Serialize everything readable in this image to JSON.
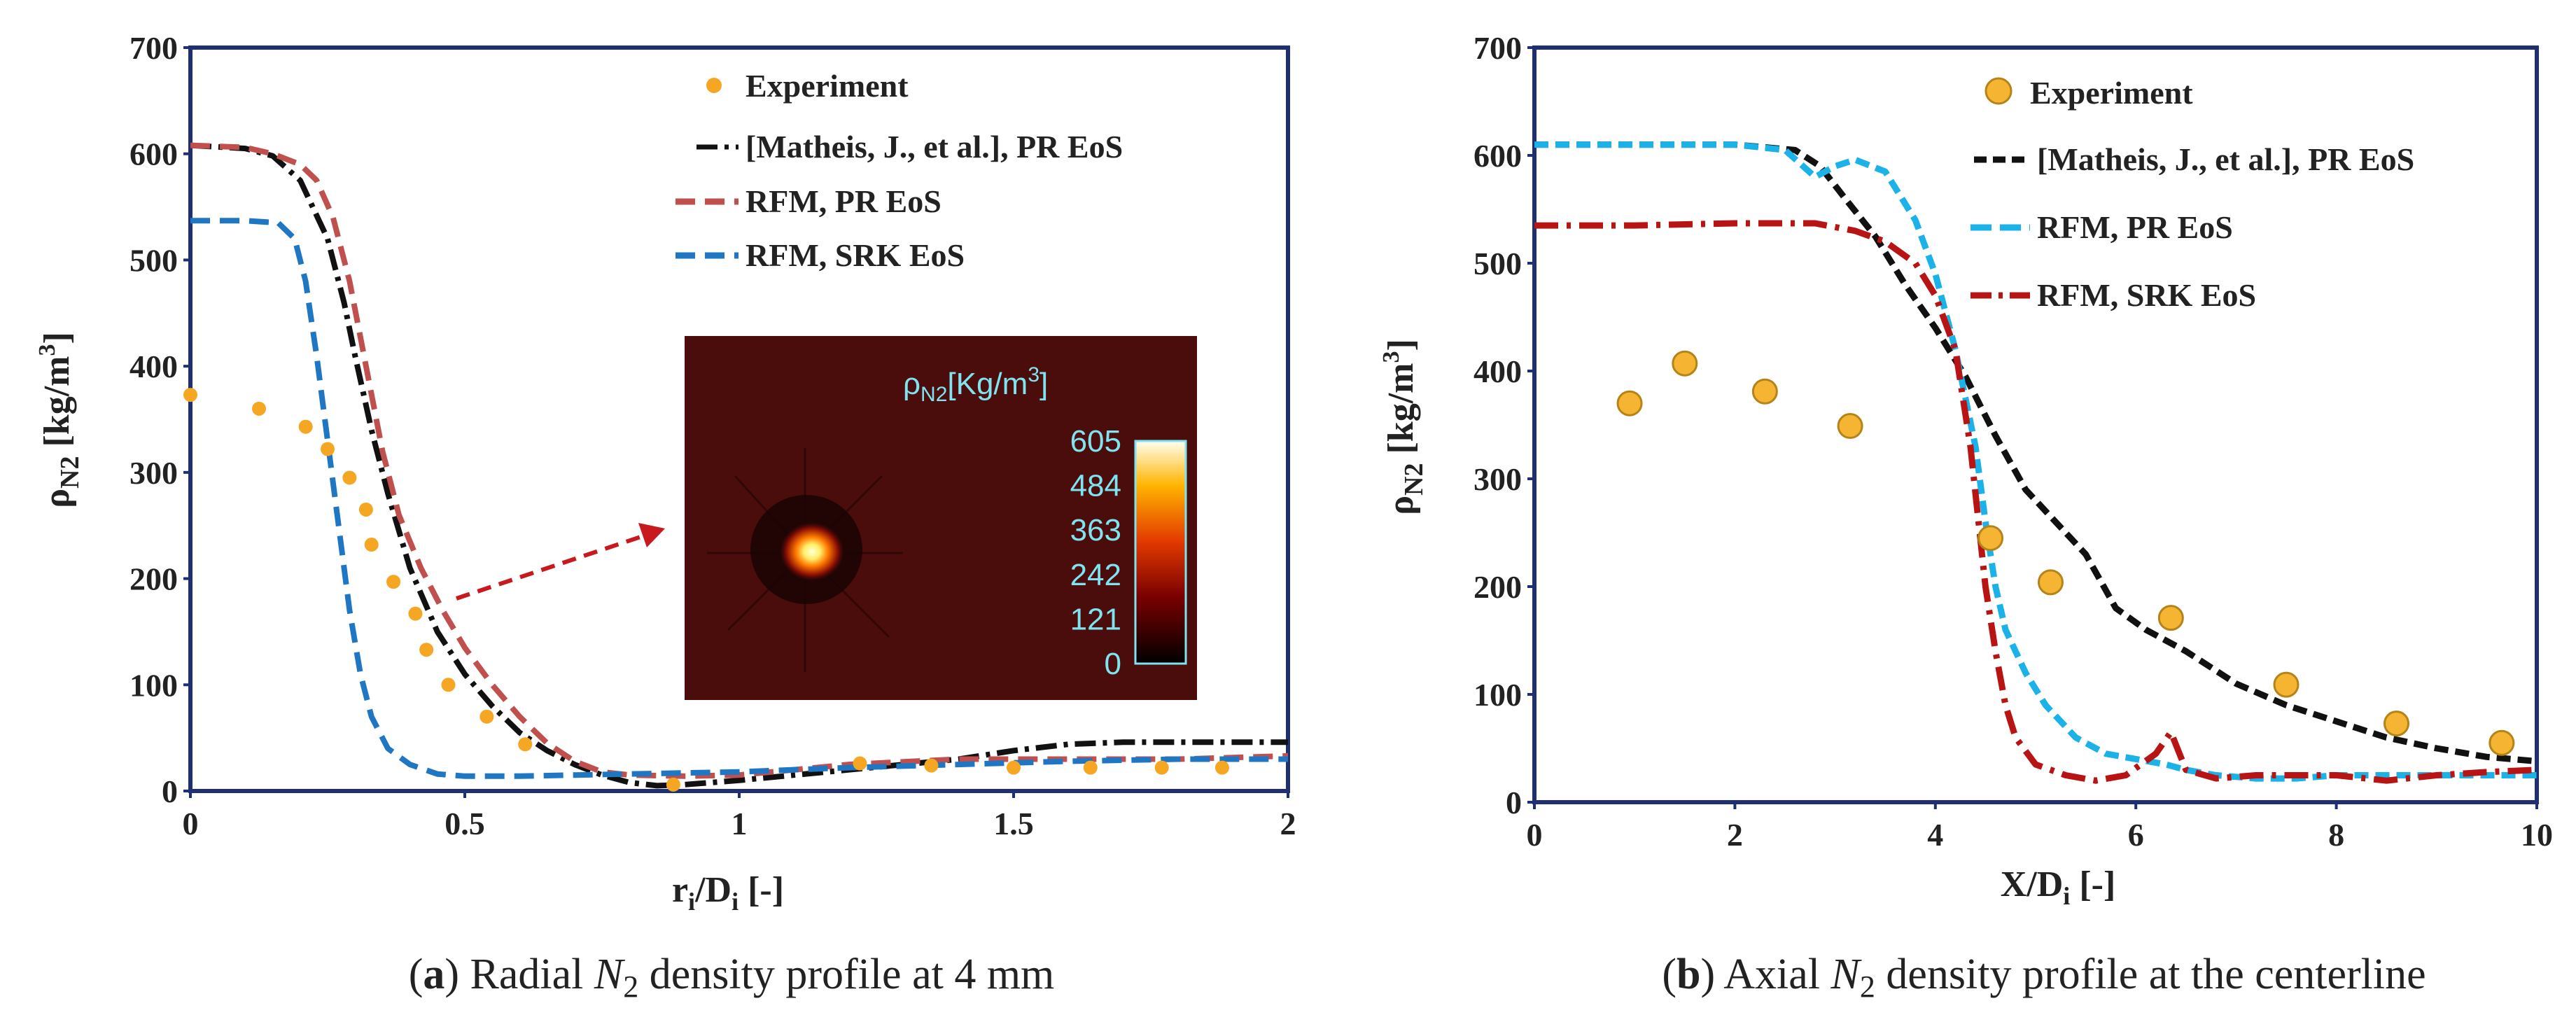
{
  "chart_data": [
    {
      "type": "line",
      "panel": "a",
      "caption_label": "a",
      "caption_text": " Radial ",
      "caption_symbol": "N",
      "caption_sub": "2",
      "caption_rest": " density profile at 4 mm",
      "xlabel_main": "r",
      "xlabel_sub": "i",
      "xlabel_mid": "/D",
      "xlabel_sub2": "i",
      "xlabel_unit": " [-]",
      "ylabel_main": "ρ",
      "ylabel_sub": "N2",
      "ylabel_unit": " [kg/m",
      "ylabel_sup": "3",
      "ylabel_close": "]",
      "xlim": [
        0,
        2
      ],
      "ylim": [
        0,
        700
      ],
      "xticks": [
        "0",
        "0.5",
        "1",
        "1.5",
        "2"
      ],
      "xtick_values": [
        0,
        0.5,
        1,
        1.5,
        2
      ],
      "yticks": [
        "0",
        "100",
        "200",
        "300",
        "400",
        "500",
        "600",
        "700"
      ],
      "ytick_values": [
        0,
        100,
        200,
        300,
        400,
        500,
        600,
        700
      ],
      "legend": [
        "Experiment",
        "[Matheis, J., et al.],  PR EoS",
        "RFM, PR EoS",
        "RFM, SRK EoS"
      ],
      "series": [
        {
          "name": "Experiment",
          "style": "marker",
          "color": "#f5a623",
          "x": [
            0.0,
            0.125,
            0.21,
            0.25,
            0.29,
            0.32,
            0.33,
            0.37,
            0.41,
            0.43,
            0.47,
            0.54,
            0.61,
            0.88,
            1.22,
            1.35,
            1.5,
            1.64,
            1.77,
            1.88
          ],
          "y": [
            373,
            360,
            343,
            322,
            295,
            265,
            232,
            197,
            167,
            133,
            100,
            70,
            44,
            6,
            26,
            24,
            22,
            22,
            22,
            22
          ]
        },
        {
          "name": "[Matheis, J., et al.],  PR EoS",
          "style": "dashdot",
          "color": "#111111",
          "x": [
            0,
            0.1,
            0.15,
            0.2,
            0.25,
            0.28,
            0.3,
            0.33,
            0.36,
            0.4,
            0.45,
            0.5,
            0.55,
            0.6,
            0.65,
            0.7,
            0.75,
            0.8,
            0.85,
            0.9,
            1.0,
            1.1,
            1.2,
            1.3,
            1.4,
            1.5,
            1.6,
            1.7,
            1.8,
            1.9,
            2.0
          ],
          "y": [
            608,
            605,
            598,
            575,
            520,
            460,
            410,
            340,
            280,
            210,
            150,
            110,
            80,
            55,
            38,
            25,
            15,
            8,
            5,
            6,
            10,
            15,
            20,
            25,
            30,
            38,
            44,
            46,
            46,
            46,
            46
          ]
        },
        {
          "name": "RFM, PR EoS",
          "style": "dashed",
          "color": "#c0504d",
          "x": [
            0,
            0.1,
            0.15,
            0.2,
            0.23,
            0.26,
            0.29,
            0.32,
            0.35,
            0.38,
            0.42,
            0.46,
            0.5,
            0.55,
            0.6,
            0.65,
            0.7,
            0.75,
            0.8,
            0.9,
            1.0,
            1.2,
            1.4,
            1.6,
            1.8,
            2.0
          ],
          "y": [
            608,
            606,
            600,
            590,
            575,
            540,
            480,
            400,
            320,
            260,
            210,
            170,
            135,
            100,
            70,
            45,
            28,
            18,
            15,
            14,
            15,
            25,
            30,
            30,
            30,
            33
          ]
        },
        {
          "name": "RFM, SRK EoS",
          "style": "dashed",
          "color": "#1f77c4",
          "x": [
            0,
            0.1,
            0.16,
            0.19,
            0.21,
            0.23,
            0.25,
            0.27,
            0.29,
            0.31,
            0.33,
            0.36,
            0.4,
            0.45,
            0.5,
            0.6,
            0.7,
            0.8,
            0.9,
            1.0,
            1.2,
            1.4,
            1.6,
            1.8,
            2.0
          ],
          "y": [
            537,
            537,
            535,
            520,
            480,
            410,
            330,
            250,
            170,
            110,
            70,
            40,
            25,
            16,
            14,
            14,
            15,
            16,
            17,
            18,
            22,
            25,
            28,
            30,
            30
          ]
        }
      ],
      "inset": {
        "title_main": "ρ",
        "title_sub": "N2",
        "title_unit": "[Kg/m",
        "title_sup": "3",
        "title_close": "]",
        "colorbar_ticks": [
          "605",
          "484",
          "363",
          "242",
          "121",
          "0"
        ],
        "colorbar_values": [
          605,
          484,
          363,
          242,
          121,
          0
        ]
      }
    },
    {
      "type": "line",
      "panel": "b",
      "caption_label": "b",
      "caption_text": " Axial ",
      "caption_symbol": "N",
      "caption_sub": "2",
      "caption_rest": " density profile at the centerline",
      "xlabel_main": "X",
      "xlabel_mid": "/D",
      "xlabel_sub2": "i",
      "xlabel_unit": " [-]",
      "ylabel_main": "ρ",
      "ylabel_sub": "N2",
      "ylabel_unit": " [kg/m",
      "ylabel_sup": "3",
      "ylabel_close": "]",
      "xlim": [
        0,
        10
      ],
      "ylim": [
        0,
        700
      ],
      "xticks": [
        "0",
        "2",
        "4",
        "6",
        "8",
        "10"
      ],
      "xtick_values": [
        0,
        2,
        4,
        6,
        8,
        10
      ],
      "yticks": [
        "0",
        "100",
        "200",
        "300",
        "400",
        "500",
        "600",
        "700"
      ],
      "ytick_values": [
        0,
        100,
        200,
        300,
        400,
        500,
        600,
        700
      ],
      "legend": [
        "Experiment",
        "[Matheis, J., et al.], PR EoS",
        "RFM, PR EoS",
        "RFM, SRK EoS"
      ],
      "series": [
        {
          "name": "Experiment",
          "style": "marker",
          "color": "#f5b533",
          "x": [
            0.95,
            1.5,
            2.3,
            3.15,
            4.55,
            5.15,
            6.35,
            7.5,
            8.6,
            9.65
          ],
          "y": [
            370,
            407,
            381,
            349,
            245,
            204,
            171,
            109,
            73,
            55
          ]
        },
        {
          "name": "[Matheis, J., et al.], PR EoS",
          "style": "dashed",
          "color": "#111111",
          "x": [
            0,
            1.0,
            2.0,
            2.6,
            2.85,
            3.1,
            3.4,
            3.7,
            4.0,
            4.3,
            4.6,
            4.9,
            5.2,
            5.5,
            5.8,
            6.1,
            6.5,
            7.0,
            7.5,
            8.0,
            8.5,
            9.0,
            9.5,
            10.0
          ],
          "y": [
            610,
            610,
            610,
            605,
            590,
            560,
            525,
            480,
            440,
            395,
            340,
            290,
            260,
            230,
            180,
            160,
            140,
            110,
            90,
            75,
            60,
            50,
            42,
            38
          ]
        },
        {
          "name": "RFM, PR EoS",
          "style": "dashed",
          "color": "#1ab2e8",
          "x": [
            0,
            1.0,
            2.0,
            2.5,
            2.8,
            3.0,
            3.2,
            3.5,
            3.8,
            4.0,
            4.2,
            4.4,
            4.5,
            4.6,
            4.7,
            4.9,
            5.1,
            5.4,
            5.7,
            6.0,
            6.3,
            6.5,
            6.8,
            7.2,
            7.6,
            8.0,
            8.5,
            9.0,
            9.5,
            10.0
          ],
          "y": [
            610,
            610,
            610,
            605,
            580,
            590,
            596,
            585,
            540,
            490,
            420,
            330,
            260,
            200,
            160,
            120,
            90,
            60,
            45,
            40,
            35,
            30,
            25,
            22,
            22,
            25,
            25,
            25,
            25,
            25
          ]
        },
        {
          "name": "RFM, SRK EoS",
          "style": "dashdot",
          "color": "#b81414",
          "x": [
            0,
            1.0,
            2.0,
            2.8,
            3.2,
            3.5,
            3.8,
            4.0,
            4.2,
            4.35,
            4.5,
            4.6,
            4.7,
            4.8,
            5.0,
            5.3,
            5.6,
            5.9,
            6.2,
            6.35,
            6.5,
            6.8,
            7.2,
            7.6,
            8.0,
            8.5,
            9.0,
            9.5,
            10.0
          ],
          "y": [
            535,
            535,
            537,
            537,
            530,
            520,
            500,
            470,
            420,
            330,
            200,
            140,
            90,
            60,
            35,
            25,
            20,
            25,
            45,
            65,
            30,
            22,
            25,
            25,
            25,
            20,
            25,
            28,
            30
          ]
        }
      ]
    }
  ]
}
